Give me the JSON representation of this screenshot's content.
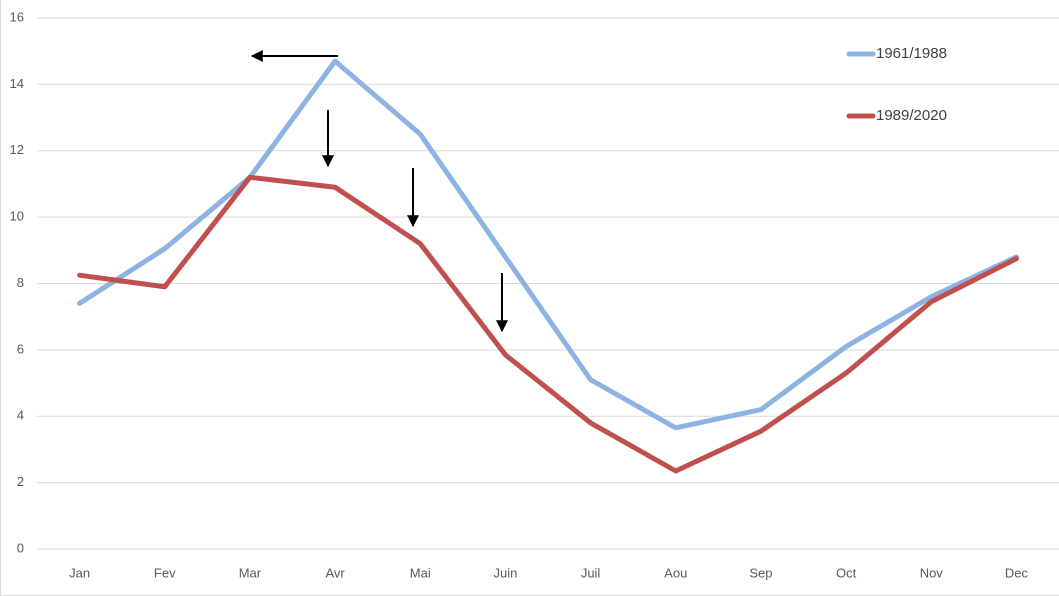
{
  "chart_data": {
    "type": "line",
    "categories": [
      "Jan",
      "Fev",
      "Mar",
      "Avr",
      "Mai",
      "Juin",
      "Juil",
      "Aou",
      "Sep",
      "Oct",
      "Nov",
      "Dec"
    ],
    "series": [
      {
        "name": "1961/1988",
        "color": "#8db3e2",
        "values": [
          7.4,
          9.05,
          11.2,
          14.7,
          12.5,
          8.8,
          5.1,
          3.65,
          4.2,
          6.1,
          7.6,
          8.8
        ]
      },
      {
        "name": "1989/2020",
        "color": "#c0504d",
        "values": [
          8.25,
          7.9,
          11.2,
          10.9,
          9.2,
          5.85,
          3.8,
          2.35,
          3.55,
          5.3,
          7.45,
          8.75
        ]
      }
    ],
    "ylim": [
      0,
      16
    ],
    "yticks": [
      0,
      2,
      4,
      6,
      8,
      10,
      12,
      14,
      16
    ],
    "grid": true,
    "legend": "top-right"
  }
}
